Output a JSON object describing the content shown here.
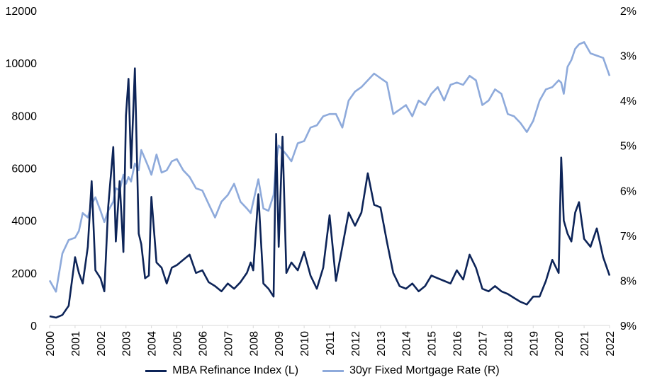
{
  "chart_data": {
    "type": "line",
    "title": "",
    "x": [
      2000.0,
      2000.25,
      2000.5,
      2000.75,
      2001.0,
      2001.15,
      2001.3,
      2001.5,
      2001.65,
      2001.8,
      2002.0,
      2002.15,
      2002.3,
      2002.5,
      2002.6,
      2002.75,
      2002.9,
      2003.0,
      2003.1,
      2003.2,
      2003.35,
      2003.5,
      2003.6,
      2003.75,
      2003.9,
      2004.0,
      2004.2,
      2004.4,
      2004.6,
      2004.8,
      2005.0,
      2005.25,
      2005.5,
      2005.75,
      2006.0,
      2006.25,
      2006.5,
      2006.75,
      2007.0,
      2007.25,
      2007.5,
      2007.75,
      2007.9,
      2008.0,
      2008.2,
      2008.4,
      2008.6,
      2008.8,
      2008.9,
      2009.0,
      2009.15,
      2009.3,
      2009.5,
      2009.75,
      2010.0,
      2010.25,
      2010.5,
      2010.75,
      2011.0,
      2011.25,
      2011.5,
      2011.75,
      2012.0,
      2012.25,
      2012.5,
      2012.75,
      2013.0,
      2013.25,
      2013.5,
      2013.75,
      2014.0,
      2014.25,
      2014.5,
      2014.75,
      2015.0,
      2015.25,
      2015.5,
      2015.75,
      2016.0,
      2016.25,
      2016.5,
      2016.75,
      2017.0,
      2017.25,
      2017.5,
      2017.75,
      2018.0,
      2018.25,
      2018.5,
      2018.75,
      2019.0,
      2019.25,
      2019.5,
      2019.75,
      2020.0,
      2020.1,
      2020.2,
      2020.35,
      2020.5,
      2020.65,
      2020.8,
      2021.0,
      2021.25,
      2021.5,
      2021.75,
      2022.0
    ],
    "series": [
      {
        "name": "MBA Refinance Index (L)",
        "axis": "left",
        "color": "#0d2458",
        "values": [
          350,
          300,
          400,
          750,
          2600,
          2000,
          1600,
          3000,
          5500,
          2100,
          1800,
          1300,
          4500,
          6800,
          3200,
          5500,
          2800,
          8000,
          9400,
          6000,
          9800,
          3500,
          3100,
          1800,
          1900,
          4900,
          2400,
          2200,
          1600,
          2200,
          2300,
          2500,
          2700,
          2000,
          2100,
          1650,
          1500,
          1300,
          1600,
          1400,
          1650,
          2000,
          2400,
          2100,
          5000,
          1600,
          1400,
          1100,
          7300,
          3000,
          7200,
          2000,
          2400,
          2100,
          2800,
          1900,
          1400,
          2200,
          4200,
          1700,
          3000,
          4300,
          3800,
          4300,
          5800,
          4600,
          4500,
          3200,
          2000,
          1500,
          1400,
          1600,
          1300,
          1500,
          1900,
          1800,
          1700,
          1600,
          2100,
          1750,
          2700,
          2200,
          1400,
          1300,
          1500,
          1300,
          1200,
          1050,
          900,
          800,
          1100,
          1100,
          1700,
          2500,
          2000,
          6400,
          4000,
          3500,
          3200,
          4300,
          4700,
          3300,
          3000,
          3700,
          2600,
          1900
        ]
      },
      {
        "name": "30yr Fixed Mortgage Rate (R)",
        "axis": "right",
        "color": "#8eaadb",
        "values": [
          8.0,
          8.25,
          7.4,
          7.1,
          7.05,
          6.9,
          6.5,
          6.6,
          6.3,
          6.15,
          6.45,
          6.7,
          6.45,
          6.25,
          5.95,
          6.0,
          5.65,
          5.85,
          5.7,
          5.8,
          5.4,
          5.55,
          5.1,
          5.3,
          5.5,
          5.65,
          5.2,
          5.6,
          5.55,
          5.35,
          5.3,
          5.55,
          5.7,
          5.95,
          6.0,
          6.3,
          6.6,
          6.25,
          6.1,
          5.85,
          6.25,
          6.4,
          6.5,
          6.25,
          5.75,
          6.4,
          6.45,
          6.1,
          5.35,
          5.0,
          5.1,
          5.2,
          5.35,
          4.95,
          4.9,
          4.6,
          4.55,
          4.35,
          4.3,
          4.3,
          4.6,
          4.0,
          3.8,
          3.7,
          3.55,
          3.4,
          3.5,
          3.6,
          4.3,
          4.2,
          4.1,
          4.35,
          4.0,
          4.1,
          3.85,
          3.7,
          4.0,
          3.65,
          3.6,
          3.65,
          3.45,
          3.55,
          4.1,
          4.0,
          3.75,
          3.85,
          4.3,
          4.35,
          4.5,
          4.7,
          4.45,
          4.0,
          3.75,
          3.7,
          3.55,
          3.6,
          3.85,
          3.25,
          3.1,
          2.85,
          2.75,
          2.7,
          2.95,
          3.0,
          3.05,
          3.45
        ]
      }
    ],
    "x_ticks": [
      "2000",
      "2001",
      "2002",
      "2003",
      "2004",
      "2005",
      "2006",
      "2007",
      "2008",
      "2009",
      "2010",
      "2011",
      "2012",
      "2013",
      "2014",
      "2015",
      "2016",
      "2017",
      "2018",
      "2019",
      "2020",
      "2021",
      "2022"
    ],
    "y_left_ticks": [
      "0",
      "2000",
      "4000",
      "6000",
      "8000",
      "10000",
      "12000"
    ],
    "y_right_ticks": [
      "2%",
      "3%",
      "4%",
      "5%",
      "6%",
      "7%",
      "8%",
      "9%"
    ],
    "xlim": [
      2000,
      2022
    ],
    "ylim_left": [
      0,
      12000
    ],
    "ylim_right": [
      9,
      2
    ],
    "right_axis_inverted": true,
    "grid": false,
    "legend": "bottom",
    "legend_entries": [
      "MBA Refinance Index (L)",
      "30yr Fixed Mortgage Rate (R)"
    ]
  }
}
